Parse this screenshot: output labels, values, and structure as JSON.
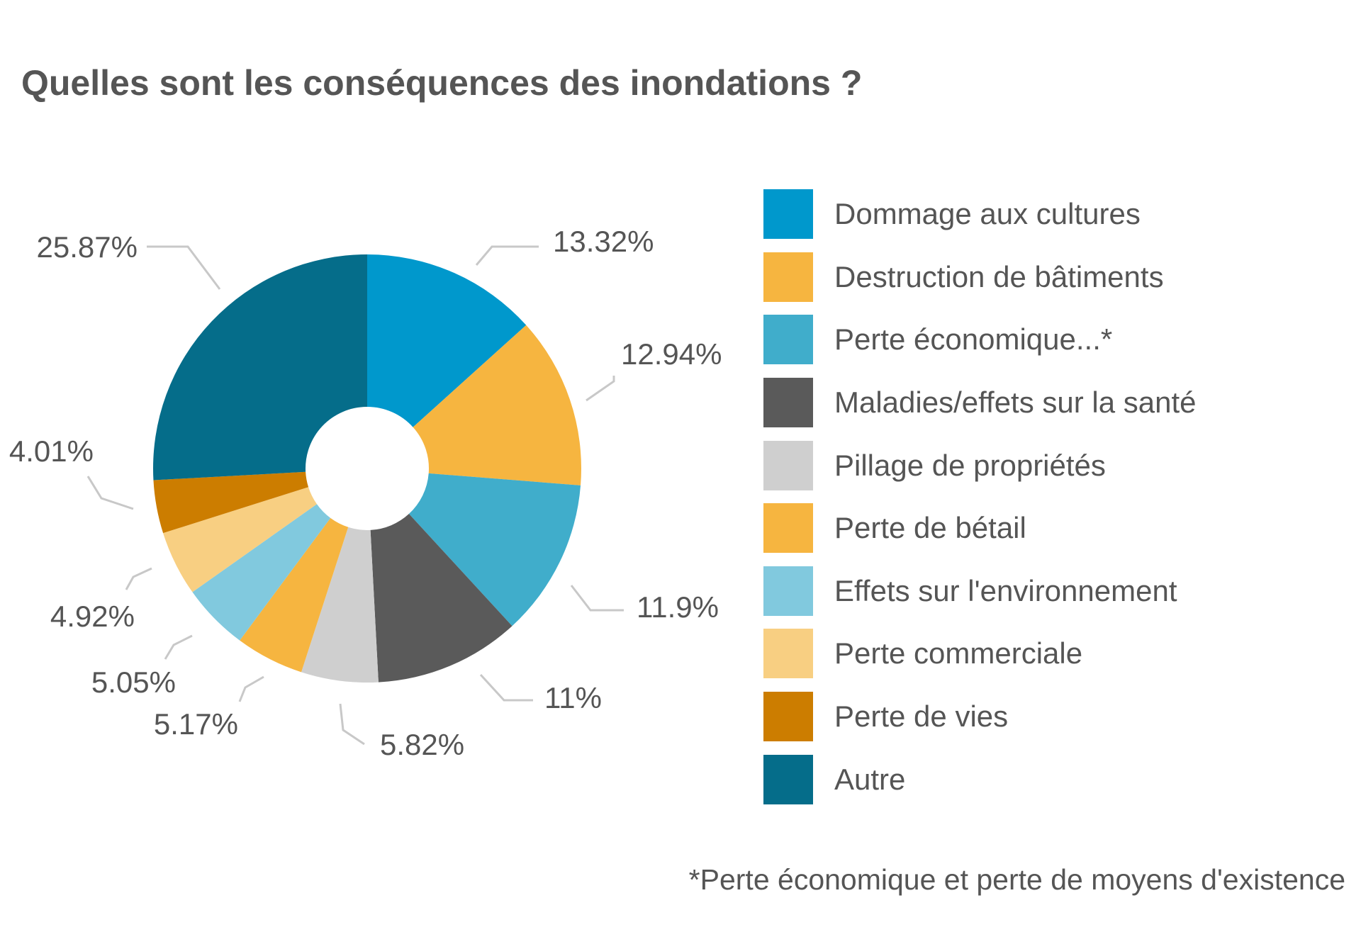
{
  "title": "Quelles sont les conséquences des inondations ?",
  "footnote": "*Perte économique et perte de moyens d'existence",
  "chart_data": {
    "type": "pie",
    "donut": true,
    "legend_position": "right",
    "slices": [
      {
        "legend": "Dommage aux cultures",
        "value": 13.32,
        "label": "13.32%",
        "color": "#0098CC"
      },
      {
        "legend": "Destruction de bâtiments",
        "value": 12.94,
        "label": "12.94%",
        "color": "#F6B540"
      },
      {
        "legend": "Perte économique...*",
        "value": 11.9,
        "label": "11.9%",
        "color": "#40ADCB"
      },
      {
        "legend": "Maladies/effets sur la santé",
        "value": 11,
        "label": "11%",
        "color": "#5A5A5A"
      },
      {
        "legend": "Pillage de propriétés",
        "value": 5.82,
        "label": "5.82%",
        "color": "#CFCFCF"
      },
      {
        "legend": "Perte de bétail",
        "value": 5.17,
        "label": "5.17%",
        "color": "#F6B540"
      },
      {
        "legend": "Effets sur l'environnement",
        "value": 5.05,
        "label": "5.05%",
        "color": "#81C9DE"
      },
      {
        "legend": "Perte commerciale",
        "value": 4.92,
        "label": "4.92%",
        "color": "#F8CF82"
      },
      {
        "legend": "Perte de vies",
        "value": 4.01,
        "label": "4.01%",
        "color": "#CC7D00"
      },
      {
        "legend": "Autre",
        "value": 25.87,
        "label": "25.87%",
        "color": "#056D8A"
      }
    ]
  }
}
